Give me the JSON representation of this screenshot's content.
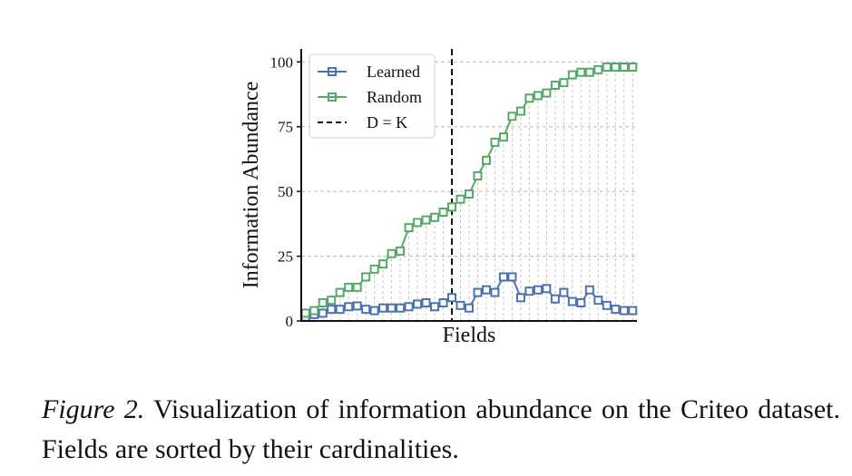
{
  "chart_data": {
    "type": "line",
    "xlabel": "Fields",
    "ylabel": "Information Abundance",
    "ylim": [
      0,
      105
    ],
    "xlim": [
      -0.5,
      38.5
    ],
    "yticks": [
      0,
      25,
      50,
      75,
      100
    ],
    "ytick_labels": [
      "0",
      "25",
      "50",
      "75",
      "100"
    ],
    "grid": "dashed horizontal at y ticks, dotted vertical at each field",
    "legend_position": "top-left",
    "x": [
      0,
      1,
      2,
      3,
      4,
      5,
      6,
      7,
      8,
      9,
      10,
      11,
      12,
      13,
      14,
      15,
      16,
      17,
      18,
      19,
      20,
      21,
      22,
      23,
      24,
      25,
      26,
      27,
      28,
      29,
      30,
      31,
      32,
      33,
      34,
      35,
      36,
      37,
      38
    ],
    "series": [
      {
        "name": "Learned",
        "color": "#4C72B0",
        "marker": "square",
        "values": [
          1.5,
          2.5,
          3,
          4.5,
          4.5,
          5.5,
          5.8,
          4.5,
          4,
          5,
          5,
          5,
          5.5,
          6.5,
          7,
          5.5,
          7,
          9,
          6,
          5,
          11,
          12,
          11,
          17,
          17,
          9,
          11.5,
          12,
          12.5,
          8.5,
          11,
          7.5,
          7,
          12,
          8,
          6,
          4.5,
          4,
          4
        ]
      },
      {
        "name": "Random",
        "color": "#55A868",
        "marker": "square",
        "values": [
          3,
          4,
          7,
          8,
          11,
          13,
          13,
          17,
          20,
          22,
          26,
          27,
          36,
          38,
          39,
          40,
          42,
          44,
          47,
          49,
          56,
          62,
          69,
          71,
          79,
          81,
          86,
          87,
          88,
          91,
          92,
          95,
          96,
          96,
          97,
          98,
          98,
          98,
          98
        ]
      }
    ],
    "vline": {
      "x": 17,
      "label": "D = K",
      "style": "dashed",
      "color": "#111111"
    }
  },
  "caption": {
    "label": "Figure 2.",
    "text": "Visualization of information abundance on the Criteo dataset. Fields are sorted by their cardinalities."
  }
}
